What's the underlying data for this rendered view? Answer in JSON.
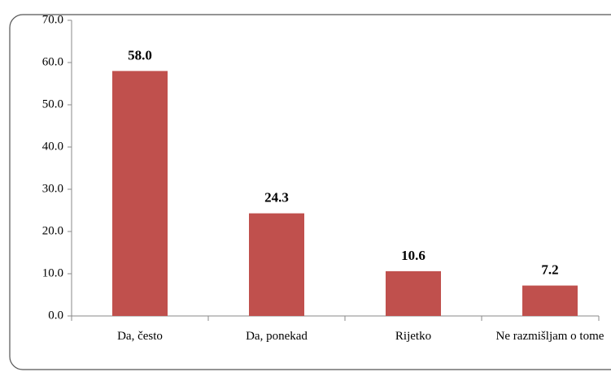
{
  "chart_data": {
    "type": "bar",
    "categories": [
      "Da, često",
      "Da, ponekad",
      "Rijetko",
      "Ne razmišljam o tome"
    ],
    "values": [
      58.0,
      24.3,
      10.6,
      7.2
    ],
    "value_labels": [
      "58.0",
      "24.3",
      "10.6",
      "7.2"
    ],
    "color": "#c0504d",
    "ylim": [
      0,
      70
    ],
    "yticks": [
      {
        "value": 0,
        "label": "0.0"
      },
      {
        "value": 10,
        "label": "10.0"
      },
      {
        "value": 20,
        "label": "20.0"
      },
      {
        "value": 30,
        "label": "30.0"
      },
      {
        "value": 40,
        "label": "40.0"
      },
      {
        "value": 50,
        "label": "50.0"
      },
      {
        "value": 60,
        "label": "60.0"
      },
      {
        "value": 70,
        "label": "70.0"
      }
    ],
    "grid": false
  }
}
